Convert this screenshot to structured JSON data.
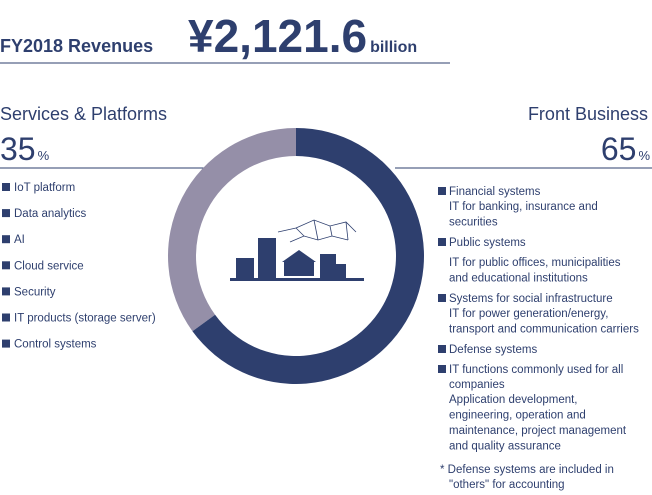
{
  "chart_data": {
    "type": "pie",
    "title": "FY2018 Revenues",
    "total_label": "¥2,121.6",
    "total_unit": "billion",
    "categories": [
      "Services & Platforms",
      "Front Business"
    ],
    "values": [
      35,
      65
    ],
    "unit": "%",
    "colors": [
      "#958fa8",
      "#2e3f6e"
    ],
    "left_items": [
      "IoT platform",
      "Data analytics",
      "AI",
      "Cloud service",
      "Security",
      "IT products (storage server)",
      "Control systems"
    ],
    "right_items": [
      {
        "name": [
          "Financial systems"
        ],
        "detail": [
          "IT for banking, insurance and",
          "securities"
        ]
      },
      {
        "name": [
          "Public systems"
        ],
        "detail": [
          "IT for public offices, municipalities",
          "and educational institutions"
        ]
      },
      {
        "name": [
          "Systems for social infrastructure"
        ],
        "detail": [
          "IT for power generation/energy,",
          "transport and communication carriers"
        ]
      },
      {
        "name": [
          "Defense systems"
        ],
        "detail": []
      },
      {
        "name": [
          "IT functions commonly used for all",
          "companies"
        ],
        "detail": [
          "Application development,",
          "engineering, operation and",
          "maintenance, project management",
          "and quality assurance"
        ]
      }
    ],
    "footnote": [
      "* Defense systems are included in",
      "\"others\" for accounting"
    ]
  }
}
